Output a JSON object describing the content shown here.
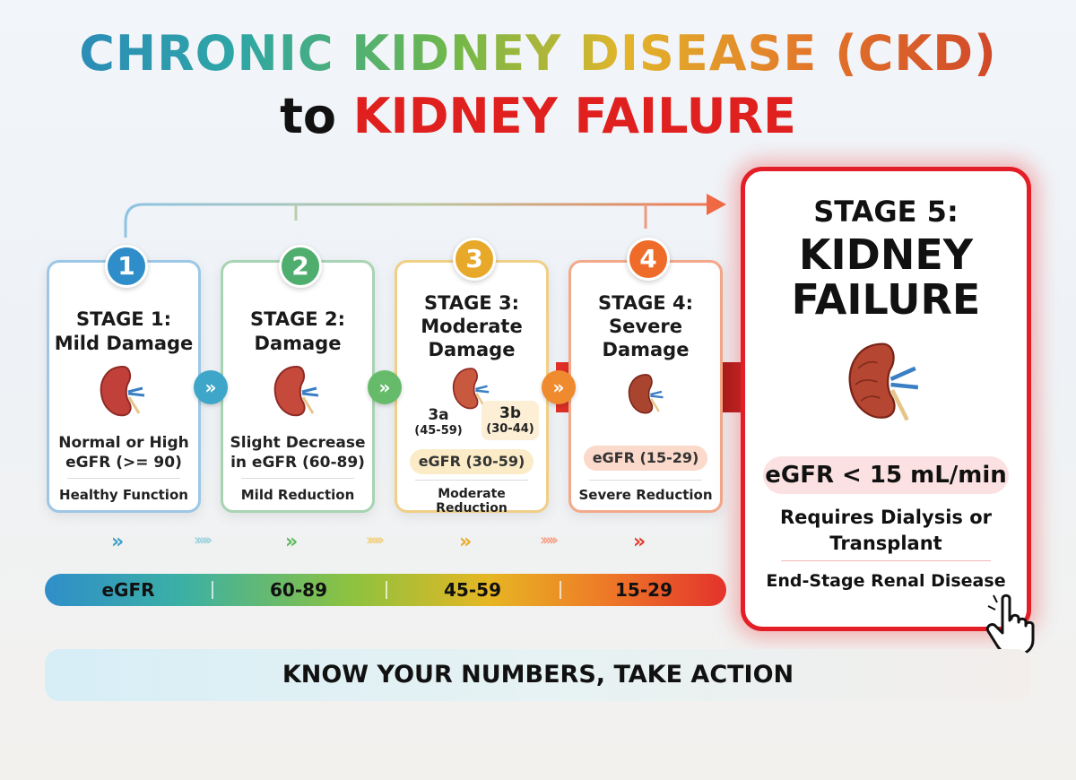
{
  "title": {
    "line1": "CHRONIC KIDNEY DISEASE (CKD)",
    "line2_prefix": "to",
    "line2_emphasis": "KIDNEY FAILURE"
  },
  "colors": {
    "stage1": "#2f8ec9",
    "stage2": "#4fae6e",
    "stage3": "#e8a92a",
    "stage4": "#ef6b2a",
    "stage5": "#e41e26"
  },
  "stages": [
    {
      "number": "1",
      "title_line1": "STAGE 1:",
      "title_line2": "Mild Damage",
      "egfr_line1": "Normal or High",
      "egfr_line2": "eGFR (>= 90)",
      "function": "Healthy Function"
    },
    {
      "number": "2",
      "title_line1": "STAGE 2:",
      "title_line2": "Damage",
      "egfr_line1": "Slight Decrease",
      "egfr_line2": "in eGFR (60-89)",
      "function": "Mild Reduction"
    },
    {
      "number": "3",
      "title_line1": "STAGE 3:",
      "title_line2": "Moderate",
      "title_line3": "Damage",
      "sub_a_label": "3a",
      "sub_a_range": "(45-59)",
      "sub_b_label": "3b",
      "sub_b_range": "(30-44)",
      "egfr_pill": "eGFR (30-59)",
      "function": "Moderate Reduction"
    },
    {
      "number": "4",
      "title_line1": "STAGE 4:",
      "title_line2": "Severe",
      "title_line3": "Damage",
      "egfr_pill": "eGFR (15-29)",
      "function": "Severe Reduction"
    }
  ],
  "stage5": {
    "title_line1": "STAGE 5:",
    "title_line2": "KIDNEY",
    "title_line3": "FAILURE",
    "egfr_pill": "eGFR < 15 mL/min",
    "requirement_line1": "Requires Dialysis or",
    "requirement_line2": "Transplant",
    "disease_name": "End-Stage Renal Disease"
  },
  "egfr_bar": {
    "labels": [
      "eGFR",
      "60-89",
      "45-59",
      "15-29"
    ]
  },
  "chevron_glyph": "»",
  "footer": {
    "text": "KNOW YOUR NUMBERS, TAKE ACTION"
  }
}
